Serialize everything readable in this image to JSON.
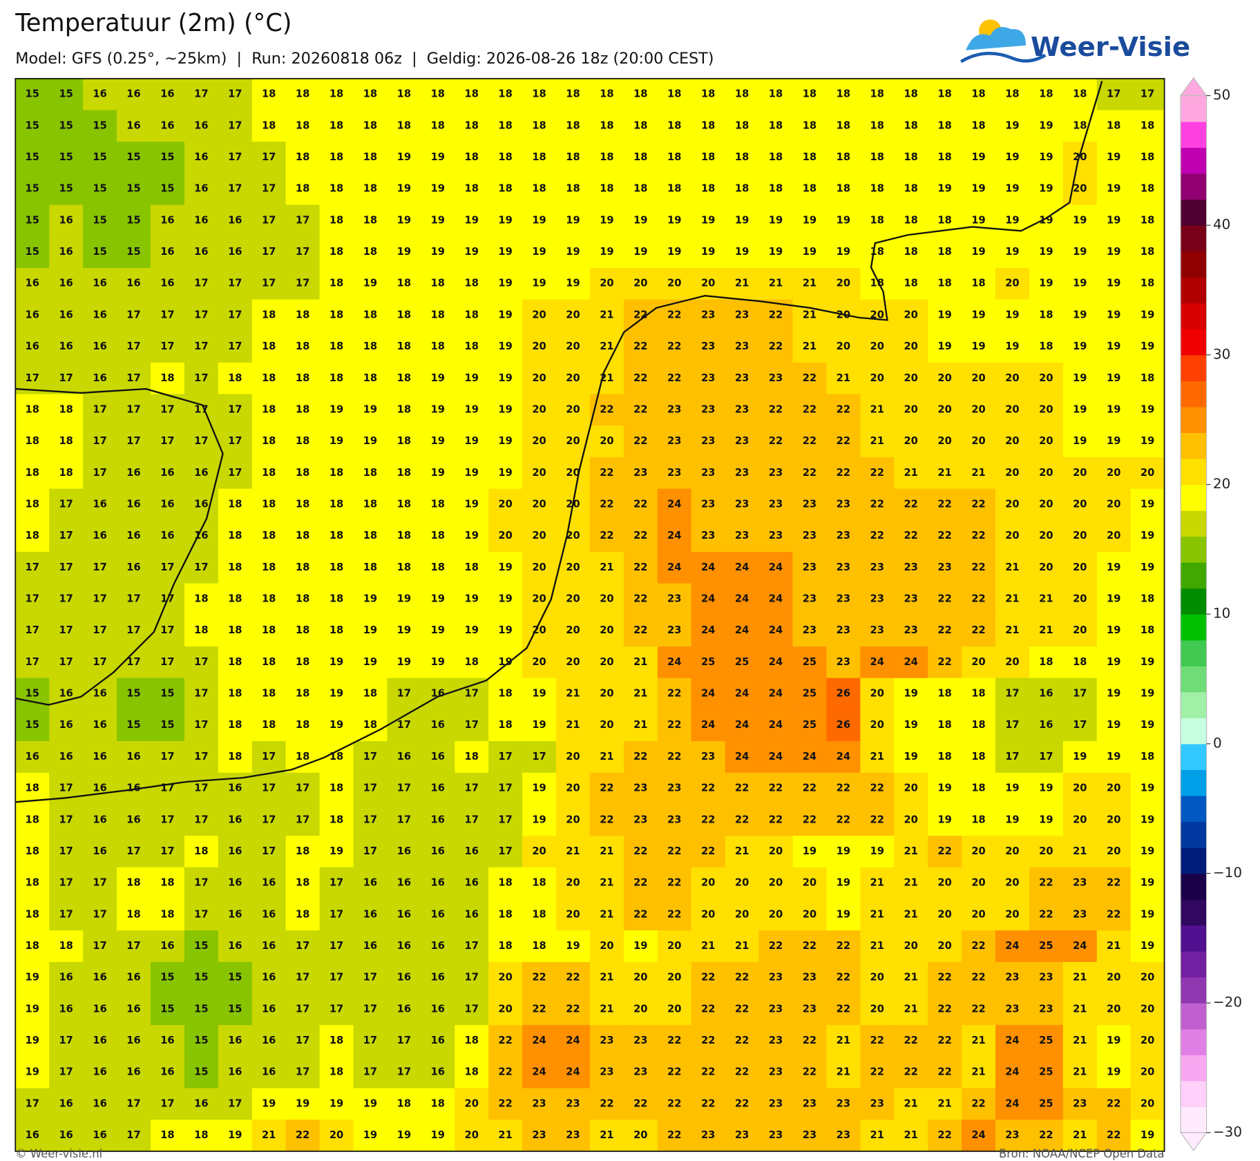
{
  "chart_data": {
    "type": "heatmap",
    "title": "Temperatuur (2m) (°C)",
    "subtitle": "Model: GFS (0.25°, ~25km)  |  Run: 20260818 06z  |  Geldig: 2026-08-26 18z (20:00 CEST)",
    "values": [
      [
        15,
        15,
        16,
        16,
        16,
        17,
        17,
        18,
        18,
        18,
        18,
        18,
        18,
        18,
        18,
        18,
        18,
        18,
        18,
        18,
        18,
        18,
        18,
        18,
        18,
        18,
        18,
        18,
        18,
        18,
        18,
        18,
        17,
        17
      ],
      [
        15,
        15,
        15,
        16,
        16,
        16,
        17,
        18,
        18,
        18,
        18,
        18,
        18,
        18,
        18,
        18,
        18,
        18,
        18,
        18,
        18,
        18,
        18,
        18,
        18,
        18,
        18,
        18,
        18,
        19,
        19,
        18,
        18,
        18
      ],
      [
        15,
        15,
        15,
        15,
        15,
        16,
        17,
        17,
        18,
        18,
        18,
        19,
        19,
        18,
        18,
        18,
        18,
        18,
        18,
        18,
        18,
        18,
        18,
        18,
        18,
        18,
        18,
        18,
        19,
        19,
        19,
        20,
        19,
        18
      ],
      [
        15,
        15,
        15,
        15,
        15,
        16,
        17,
        17,
        18,
        18,
        18,
        19,
        19,
        18,
        18,
        18,
        18,
        18,
        18,
        18,
        18,
        18,
        18,
        18,
        18,
        18,
        18,
        19,
        19,
        19,
        19,
        20,
        19,
        18
      ],
      [
        15,
        16,
        15,
        15,
        16,
        16,
        16,
        17,
        17,
        18,
        18,
        19,
        19,
        19,
        19,
        19,
        19,
        19,
        19,
        19,
        19,
        19,
        19,
        19,
        19,
        18,
        18,
        18,
        19,
        19,
        19,
        19,
        19,
        18
      ],
      [
        15,
        16,
        15,
        15,
        16,
        16,
        16,
        17,
        17,
        18,
        18,
        19,
        19,
        19,
        19,
        19,
        19,
        19,
        19,
        19,
        19,
        19,
        19,
        19,
        19,
        18,
        18,
        18,
        19,
        19,
        19,
        19,
        19,
        18
      ],
      [
        16,
        16,
        16,
        16,
        16,
        17,
        17,
        17,
        17,
        18,
        19,
        18,
        18,
        18,
        19,
        19,
        19,
        20,
        20,
        20,
        20,
        21,
        21,
        21,
        20,
        18,
        18,
        18,
        18,
        20,
        19,
        19,
        19,
        18
      ],
      [
        16,
        16,
        16,
        17,
        17,
        17,
        17,
        18,
        18,
        18,
        18,
        18,
        18,
        18,
        19,
        20,
        20,
        21,
        22,
        22,
        23,
        23,
        22,
        21,
        20,
        20,
        20,
        19,
        19,
        19,
        18,
        19,
        19,
        19
      ],
      [
        16,
        16,
        16,
        17,
        17,
        17,
        17,
        18,
        18,
        18,
        18,
        18,
        18,
        18,
        19,
        20,
        20,
        21,
        22,
        22,
        23,
        23,
        22,
        21,
        20,
        20,
        20,
        19,
        19,
        19,
        18,
        19,
        19,
        19
      ],
      [
        17,
        17,
        16,
        17,
        18,
        17,
        18,
        18,
        18,
        18,
        18,
        18,
        19,
        19,
        19,
        20,
        20,
        21,
        22,
        22,
        23,
        23,
        23,
        22,
        21,
        20,
        20,
        20,
        20,
        20,
        20,
        19,
        19,
        18
      ],
      [
        18,
        18,
        17,
        17,
        17,
        17,
        17,
        18,
        18,
        19,
        19,
        18,
        19,
        19,
        19,
        20,
        20,
        22,
        22,
        23,
        23,
        23,
        22,
        22,
        22,
        21,
        20,
        20,
        20,
        20,
        20,
        19,
        19,
        19
      ],
      [
        18,
        18,
        17,
        17,
        17,
        17,
        17,
        18,
        18,
        19,
        19,
        18,
        19,
        19,
        19,
        20,
        20,
        20,
        22,
        23,
        23,
        23,
        22,
        22,
        22,
        21,
        20,
        20,
        20,
        20,
        20,
        19,
        19,
        19
      ],
      [
        18,
        18,
        17,
        16,
        16,
        16,
        17,
        18,
        18,
        18,
        18,
        18,
        19,
        19,
        19,
        20,
        20,
        22,
        23,
        23,
        23,
        23,
        23,
        22,
        22,
        22,
        21,
        21,
        21,
        20,
        20,
        20,
        20,
        20
      ],
      [
        18,
        17,
        16,
        16,
        16,
        16,
        18,
        18,
        18,
        18,
        18,
        18,
        18,
        19,
        20,
        20,
        20,
        22,
        22,
        24,
        23,
        23,
        23,
        23,
        23,
        22,
        22,
        22,
        22,
        20,
        20,
        20,
        20,
        19
      ],
      [
        18,
        17,
        16,
        16,
        16,
        16,
        18,
        18,
        18,
        18,
        18,
        18,
        18,
        19,
        20,
        20,
        20,
        22,
        22,
        24,
        23,
        23,
        23,
        23,
        23,
        22,
        22,
        22,
        22,
        20,
        20,
        20,
        20,
        19
      ],
      [
        17,
        17,
        17,
        16,
        17,
        17,
        18,
        18,
        18,
        18,
        18,
        18,
        18,
        18,
        19,
        20,
        20,
        21,
        22,
        24,
        24,
        24,
        24,
        23,
        23,
        23,
        23,
        23,
        22,
        21,
        20,
        20,
        19,
        19
      ],
      [
        17,
        17,
        17,
        17,
        17,
        18,
        18,
        18,
        18,
        18,
        19,
        19,
        19,
        19,
        19,
        20,
        20,
        20,
        22,
        23,
        24,
        24,
        24,
        23,
        23,
        23,
        23,
        22,
        22,
        21,
        21,
        20,
        19,
        18
      ],
      [
        17,
        17,
        17,
        17,
        17,
        18,
        18,
        18,
        18,
        18,
        19,
        19,
        19,
        19,
        19,
        20,
        20,
        20,
        22,
        23,
        24,
        24,
        24,
        23,
        23,
        23,
        23,
        22,
        22,
        21,
        21,
        20,
        19,
        18
      ],
      [
        17,
        17,
        17,
        17,
        17,
        17,
        18,
        18,
        18,
        19,
        19,
        19,
        19,
        18,
        19,
        20,
        20,
        20,
        21,
        24,
        25,
        25,
        24,
        25,
        23,
        24,
        24,
        22,
        20,
        20,
        18,
        18,
        19,
        19
      ],
      [
        15,
        16,
        16,
        15,
        15,
        17,
        18,
        18,
        18,
        19,
        18,
        17,
        16,
        17,
        18,
        19,
        21,
        20,
        21,
        22,
        24,
        24,
        24,
        25,
        26,
        20,
        19,
        18,
        18,
        17,
        16,
        17,
        19,
        19
      ],
      [
        15,
        16,
        16,
        15,
        15,
        17,
        18,
        18,
        18,
        19,
        18,
        17,
        16,
        17,
        18,
        19,
        21,
        20,
        21,
        22,
        24,
        24,
        24,
        25,
        26,
        20,
        19,
        18,
        18,
        17,
        16,
        17,
        19,
        19
      ],
      [
        16,
        16,
        16,
        16,
        17,
        17,
        18,
        17,
        18,
        18,
        17,
        16,
        16,
        18,
        17,
        17,
        20,
        21,
        22,
        22,
        23,
        24,
        24,
        24,
        24,
        21,
        19,
        18,
        18,
        17,
        17,
        19,
        19,
        18
      ],
      [
        18,
        17,
        16,
        16,
        17,
        17,
        16,
        17,
        17,
        18,
        17,
        17,
        16,
        17,
        17,
        19,
        20,
        22,
        23,
        23,
        22,
        22,
        22,
        22,
        22,
        22,
        20,
        19,
        18,
        19,
        19,
        20,
        20,
        19
      ],
      [
        18,
        17,
        16,
        16,
        17,
        17,
        16,
        17,
        17,
        18,
        17,
        17,
        16,
        17,
        17,
        19,
        20,
        22,
        23,
        23,
        22,
        22,
        22,
        22,
        22,
        22,
        20,
        19,
        18,
        19,
        19,
        20,
        20,
        19
      ],
      [
        18,
        17,
        16,
        17,
        17,
        18,
        16,
        17,
        18,
        19,
        17,
        16,
        16,
        16,
        17,
        20,
        21,
        21,
        22,
        22,
        22,
        21,
        20,
        19,
        19,
        19,
        21,
        22,
        20,
        20,
        20,
        21,
        20,
        19
      ],
      [
        18,
        17,
        17,
        18,
        18,
        17,
        16,
        16,
        18,
        17,
        16,
        16,
        16,
        16,
        18,
        18,
        20,
        21,
        22,
        22,
        20,
        20,
        20,
        20,
        19,
        21,
        21,
        20,
        20,
        20,
        22,
        23,
        22,
        19
      ],
      [
        18,
        17,
        17,
        18,
        18,
        17,
        16,
        16,
        18,
        17,
        16,
        16,
        16,
        16,
        18,
        18,
        20,
        21,
        22,
        22,
        20,
        20,
        20,
        20,
        19,
        21,
        21,
        20,
        20,
        20,
        22,
        23,
        22,
        19
      ],
      [
        18,
        18,
        17,
        17,
        16,
        15,
        16,
        16,
        17,
        17,
        16,
        16,
        16,
        17,
        18,
        18,
        19,
        20,
        19,
        20,
        21,
        21,
        22,
        22,
        22,
        21,
        20,
        20,
        22,
        24,
        25,
        24,
        21,
        19
      ],
      [
        19,
        16,
        16,
        16,
        15,
        15,
        15,
        16,
        17,
        17,
        17,
        16,
        16,
        17,
        20,
        22,
        22,
        21,
        20,
        20,
        22,
        22,
        23,
        23,
        22,
        20,
        21,
        22,
        22,
        23,
        23,
        21,
        20,
        20
      ],
      [
        19,
        16,
        16,
        16,
        15,
        15,
        15,
        16,
        17,
        17,
        17,
        16,
        16,
        17,
        20,
        22,
        22,
        21,
        20,
        20,
        22,
        22,
        23,
        23,
        22,
        20,
        21,
        22,
        22,
        23,
        23,
        21,
        20,
        20
      ],
      [
        19,
        17,
        16,
        16,
        16,
        15,
        16,
        16,
        17,
        18,
        17,
        17,
        16,
        18,
        22,
        24,
        24,
        23,
        23,
        22,
        22,
        22,
        23,
        22,
        21,
        22,
        22,
        22,
        21,
        24,
        25,
        21,
        19,
        20
      ],
      [
        19,
        17,
        16,
        16,
        16,
        15,
        16,
        16,
        17,
        18,
        17,
        17,
        16,
        18,
        22,
        24,
        24,
        23,
        23,
        22,
        22,
        22,
        23,
        22,
        21,
        22,
        22,
        22,
        21,
        24,
        25,
        21,
        19,
        20
      ],
      [
        17,
        16,
        16,
        17,
        17,
        16,
        17,
        19,
        19,
        19,
        19,
        18,
        18,
        20,
        22,
        23,
        23,
        22,
        22,
        22,
        22,
        22,
        23,
        23,
        23,
        23,
        21,
        21,
        22,
        24,
        25,
        23,
        22,
        20
      ],
      [
        16,
        16,
        16,
        17,
        18,
        18,
        19,
        21,
        22,
        20,
        19,
        19,
        19,
        20,
        21,
        23,
        23,
        21,
        20,
        22,
        23,
        23,
        23,
        23,
        23,
        21,
        21,
        22,
        24,
        23,
        22,
        21,
        22,
        19
      ]
    ],
    "clim": [
      -30,
      50
    ],
    "colors": [
      "#ffeafe",
      "#ffd0fa",
      "#f8a8f0",
      "#e080e4",
      "#c060d0",
      "#9038b0",
      "#7020a0",
      "#501090",
      "#300860",
      "#1a0048",
      "#001c7a",
      "#0038a0",
      "#0058c0",
      "#00a0e8",
      "#30c8ff",
      "#c8ffe0",
      "#a0f0a8",
      "#70dc78",
      "#40c850",
      "#00c000",
      "#008c00",
      "#40a800",
      "#88c400",
      "#c8d800",
      "#ffff00",
      "#ffe000",
      "#ffc000",
      "#ff9000",
      "#ff6a00",
      "#ff4000",
      "#f00000",
      "#d80000",
      "#b00000",
      "#900000",
      "#780018",
      "#500030",
      "#900070",
      "#c000b0",
      "#ff40e0",
      "#ffa8e0"
    ],
    "cticks": [
      {
        "value": -30,
        "label": "−30"
      },
      {
        "value": -20,
        "label": "−20"
      },
      {
        "value": -10,
        "label": "−10"
      },
      0,
      10,
      20,
      30,
      40,
      50
    ],
    "logo": "Weer-Visie",
    "credit": "© Weer-visie.nl",
    "source": "Bron: NOAA/NCEP Open Data"
  }
}
